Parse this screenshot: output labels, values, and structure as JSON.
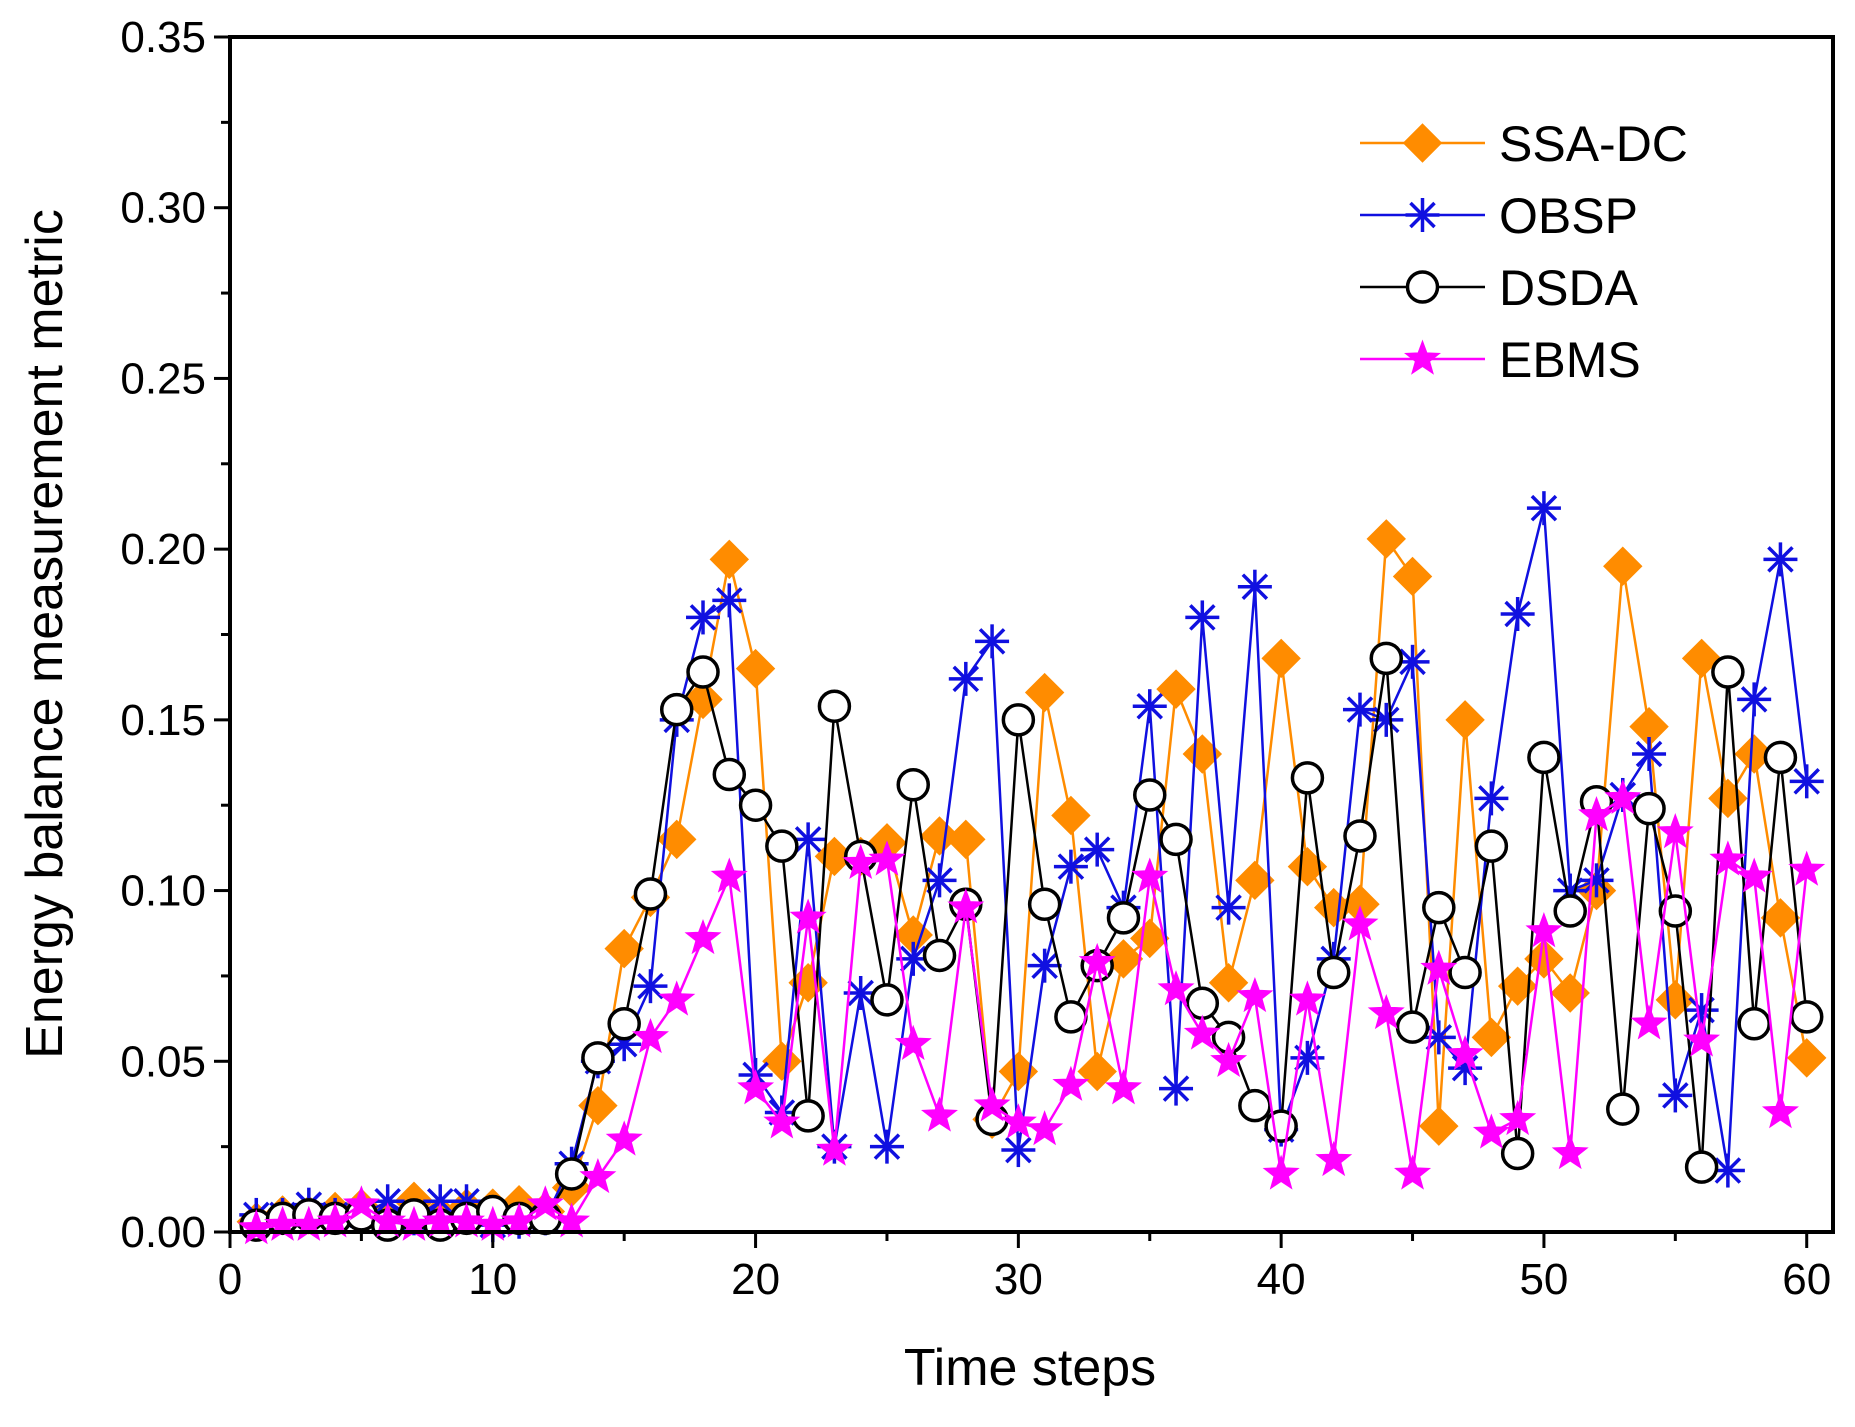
{
  "chart_data": {
    "type": "line",
    "title": "",
    "xlabel": "Time steps",
    "ylabel": "Energy balance measurement metric",
    "xlim": [
      0,
      61
    ],
    "ylim": [
      0,
      0.35
    ],
    "xticks": [
      "0",
      "10",
      "20",
      "30",
      "40",
      "50",
      "60"
    ],
    "yticks": [
      "0.00",
      "0.05",
      "0.10",
      "0.15",
      "0.20",
      "0.25",
      "0.30",
      "0.35"
    ],
    "legend_position": "top-right",
    "x": [
      1,
      2,
      3,
      4,
      5,
      6,
      7,
      8,
      9,
      10,
      11,
      12,
      13,
      14,
      15,
      16,
      17,
      18,
      19,
      20,
      21,
      22,
      23,
      24,
      25,
      26,
      27,
      28,
      29,
      30,
      31,
      32,
      33,
      34,
      35,
      36,
      37,
      38,
      39,
      40,
      41,
      42,
      43,
      44,
      45,
      46,
      47,
      48,
      49,
      50,
      51,
      52,
      53,
      54,
      55,
      56,
      57,
      58,
      59,
      60
    ],
    "series": [
      {
        "name": "SSA-DC",
        "color": "#ff8c00",
        "marker": "diamond",
        "values": [
          0.003,
          0.005,
          0.005,
          0.006,
          0.007,
          0.004,
          0.009,
          0.005,
          0.007,
          0.007,
          0.008,
          0.006,
          0.013,
          0.037,
          0.083,
          0.098,
          0.115,
          0.156,
          0.197,
          0.165,
          0.05,
          0.073,
          0.11,
          0.11,
          0.114,
          0.087,
          0.116,
          0.115,
          0.033,
          0.047,
          0.158,
          0.122,
          0.047,
          0.08,
          0.086,
          0.159,
          0.14,
          0.073,
          0.103,
          0.168,
          0.107,
          0.095,
          0.096,
          0.203,
          0.192,
          0.031,
          0.15,
          0.057,
          0.072,
          0.08,
          0.07,
          0.1,
          0.195,
          0.148,
          0.068,
          0.168,
          0.127,
          0.14,
          0.092,
          0.051
        ]
      },
      {
        "name": "OBSP",
        "color": "#1010e0",
        "marker": "asterisk",
        "values": [
          0.005,
          0.005,
          0.008,
          0.005,
          0.005,
          0.009,
          0.004,
          0.009,
          0.009,
          0.002,
          0.003,
          0.004,
          0.02,
          0.05,
          0.055,
          0.072,
          0.15,
          0.18,
          0.185,
          0.046,
          0.035,
          0.115,
          0.025,
          0.07,
          0.025,
          0.08,
          0.103,
          0.162,
          0.173,
          0.024,
          0.078,
          0.107,
          0.112,
          0.095,
          0.154,
          0.042,
          0.18,
          0.095,
          0.189,
          0.03,
          0.051,
          0.08,
          0.153,
          0.15,
          0.167,
          0.057,
          0.048,
          0.127,
          0.181,
          0.212,
          0.1,
          0.103,
          0.128,
          0.14,
          0.04,
          0.065,
          0.018,
          0.156,
          0.197,
          0.132
        ]
      },
      {
        "name": "DSDA",
        "color": "#000000",
        "marker": "circle",
        "values": [
          0.002,
          0.004,
          0.005,
          0.004,
          0.005,
          0.002,
          0.005,
          0.002,
          0.004,
          0.006,
          0.004,
          0.004,
          0.017,
          0.051,
          0.061,
          0.099,
          0.153,
          0.164,
          0.134,
          0.125,
          0.113,
          0.034,
          0.154,
          0.11,
          0.068,
          0.131,
          0.081,
          0.096,
          0.033,
          0.15,
          0.096,
          0.063,
          0.078,
          0.092,
          0.128,
          0.115,
          0.067,
          0.057,
          0.037,
          0.031,
          0.133,
          0.076,
          0.116,
          0.168,
          0.06,
          0.095,
          0.076,
          0.113,
          0.023,
          0.139,
          0.094,
          0.126,
          0.036,
          0.124,
          0.094,
          0.019,
          0.164,
          0.061,
          0.139,
          0.063
        ]
      },
      {
        "name": "EBMS",
        "color": "#ff00ff",
        "marker": "star",
        "values": [
          0.001,
          0.002,
          0.002,
          0.003,
          0.008,
          0.003,
          0.002,
          0.003,
          0.003,
          0.002,
          0.003,
          0.008,
          0.003,
          0.016,
          0.027,
          0.057,
          0.068,
          0.086,
          0.104,
          0.042,
          0.032,
          0.092,
          0.024,
          0.108,
          0.109,
          0.055,
          0.034,
          0.095,
          0.037,
          0.032,
          0.03,
          0.043,
          0.079,
          0.042,
          0.104,
          0.071,
          0.058,
          0.05,
          0.069,
          0.017,
          0.068,
          0.021,
          0.09,
          0.064,
          0.017,
          0.077,
          0.052,
          0.029,
          0.033,
          0.088,
          0.023,
          0.122,
          0.127,
          0.061,
          0.117,
          0.056,
          0.109,
          0.104,
          0.035,
          0.106
        ]
      }
    ]
  }
}
